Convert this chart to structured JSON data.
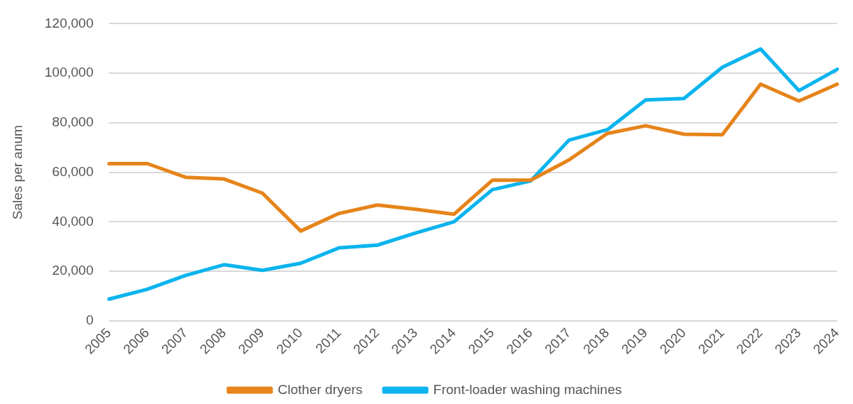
{
  "chart_data": {
    "type": "line",
    "ylabel": "Sales per anum",
    "categories": [
      "2005",
      "2006",
      "2007",
      "2008",
      "2009",
      "2010",
      "2011",
      "2012",
      "2013",
      "2014",
      "2015",
      "2016",
      "2017",
      "2018",
      "2019",
      "2020",
      "2021",
      "2022",
      "2023",
      "2024"
    ],
    "series": [
      {
        "name": "Clother dryers",
        "color": "#e6841a",
        "values": [
          63500,
          63500,
          58000,
          57300,
          51600,
          36300,
          43400,
          46800,
          45100,
          43100,
          56800,
          56800,
          65000,
          75700,
          78800,
          75400,
          75200,
          95600,
          88800,
          95600
        ]
      },
      {
        "name": "Front-loader washing machines",
        "color": "#0ab4ee",
        "values": [
          8800,
          12800,
          18400,
          22700,
          20400,
          23300,
          29500,
          30600,
          35500,
          40000,
          53000,
          56500,
          73000,
          77200,
          89200,
          89800,
          102400,
          109800,
          93000,
          101600
        ]
      }
    ],
    "ylim": [
      0,
      120000
    ],
    "yticks": [
      {
        "value": 0,
        "label": "0"
      },
      {
        "value": 20000,
        "label": "20,000"
      },
      {
        "value": 40000,
        "label": "40,000"
      },
      {
        "value": 60000,
        "label": "60,000"
      },
      {
        "value": 80000,
        "label": "80,000"
      },
      {
        "value": 100000,
        "label": "100,000"
      },
      {
        "value": 120000,
        "label": "120,000"
      }
    ],
    "grid": "y",
    "legend": "bottom",
    "marker": "none",
    "line_style": "solid"
  }
}
